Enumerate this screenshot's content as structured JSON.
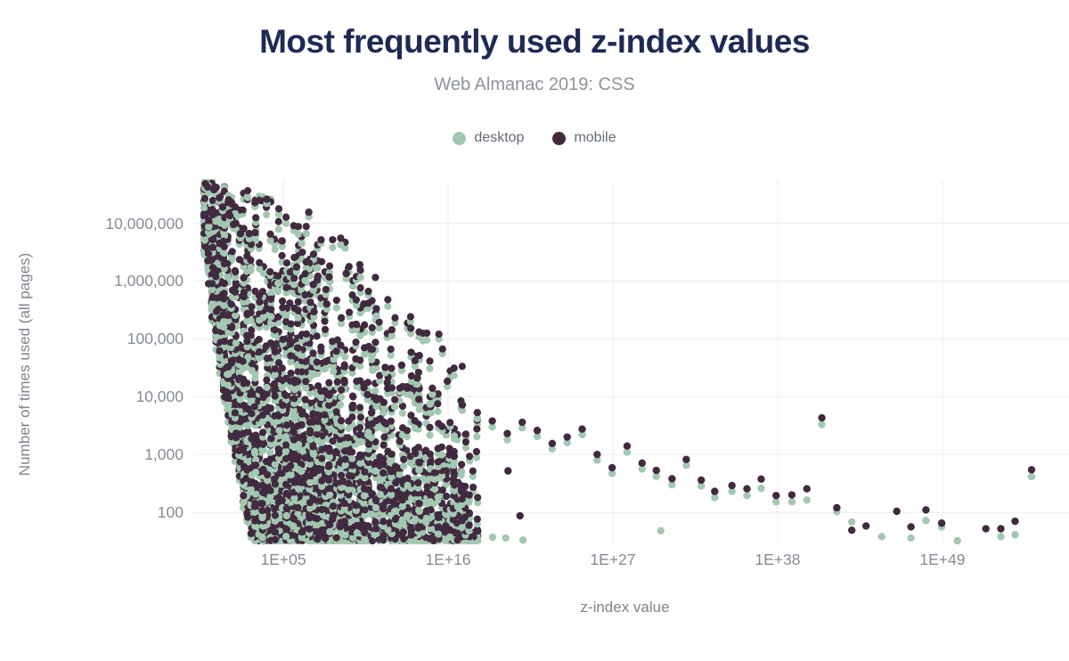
{
  "header": {
    "title": "Most frequently used z-index values",
    "subtitle": "Web Almanac 2019: CSS"
  },
  "palette": {
    "background": "#ffffff",
    "title_text": "#1e2a56",
    "subtitle_text": "#8e939a",
    "legend_text": "#636a73",
    "axis_title_text": "#7d848d",
    "tick_text": "#858c94",
    "gridline": "#ececec"
  },
  "chart_data": {
    "type": "scatter",
    "title": "Most frequently used z-index values",
    "subtitle": "Web Almanac 2019: CSS",
    "xlabel": "z-index value",
    "ylabel": "Number of times used (all pages)",
    "x_scale": "log",
    "y_scale": "log",
    "grid": true,
    "legend_position": "top",
    "x_domain_log10": [
      -0.95,
      57.45
    ],
    "y_domain": [
      27,
      54000000
    ],
    "x_ticks": [
      {
        "label": "1E+05",
        "log10": 5
      },
      {
        "label": "1E+16",
        "log10": 16
      },
      {
        "label": "1E+27",
        "log10": 27
      },
      {
        "label": "1E+38",
        "log10": 38
      },
      {
        "label": "1E+49",
        "log10": 49
      }
    ],
    "y_ticks": [
      {
        "label": "100",
        "value": 100
      },
      {
        "label": "1,000",
        "value": 1000
      },
      {
        "label": "10,000",
        "value": 10000
      },
      {
        "label": "100,000",
        "value": 100000
      },
      {
        "label": "1,000,000",
        "value": 1000000
      },
      {
        "label": "10,000,000",
        "value": 10000000
      }
    ],
    "series": [
      {
        "name": "desktop",
        "color": "#a3c8b2"
      },
      {
        "name": "mobile",
        "color": "#412a40"
      }
    ],
    "sparse_points_format": [
      "log10_zindex",
      "mobile_count",
      "desktop_count"
    ],
    "sparse_points": [
      [
        -0.2,
        48000000,
        54000000
      ],
      [
        -0.05,
        42000000,
        38000000
      ],
      [
        0.37,
        38000000,
        33000000
      ],
      [
        0.73,
        27500000,
        24000000
      ],
      [
        0.95,
        19000000,
        16500000
      ],
      [
        1.43,
        13500000,
        11500000
      ],
      [
        1.67,
        9500000,
        8200000
      ],
      [
        2.14,
        6600000,
        5600000
      ],
      [
        2.73,
        6600000,
        5400000
      ],
      [
        3.9,
        26000000,
        22000000
      ],
      [
        5.89,
        1750000,
        1450000
      ],
      [
        6.7,
        15500000,
        13000000
      ],
      [
        7.0,
        870000,
        700000
      ],
      [
        7.05,
        295000,
        240000
      ],
      [
        7.9,
        400000,
        330000
      ],
      [
        8.87,
        230000,
        185000
      ],
      [
        9.2,
        1350000,
        1100000
      ],
      [
        9.87,
        178000,
        145000
      ],
      [
        10.9,
        66000,
        54000
      ],
      [
        11.85,
        3400,
        2700
      ],
      [
        11.8,
        32000,
        26000
      ],
      [
        12.9,
        35000,
        28500
      ],
      [
        13.95,
        21000,
        16500
      ],
      [
        14.05,
        9000,
        7400
      ],
      [
        14.95,
        14000,
        11000
      ],
      [
        15.95,
        18500,
        15000
      ],
      [
        16.95,
        7200,
        5800
      ],
      [
        17.95,
        5300,
        4200
      ],
      [
        18.95,
        3800,
        3000
      ],
      [
        18.97,
        null,
        37
      ],
      [
        19.85,
        null,
        36
      ],
      [
        19.95,
        2300,
        1800
      ],
      [
        20.0,
        520,
        null
      ],
      [
        20.8,
        87,
        null
      ],
      [
        21.0,
        null,
        33
      ],
      [
        20.95,
        3600,
        2900
      ],
      [
        21.95,
        2600,
        2050
      ],
      [
        22.95,
        1550,
        1250
      ],
      [
        23.95,
        2000,
        1600
      ],
      [
        24.95,
        2750,
        2200
      ],
      [
        25.95,
        1000,
        800
      ],
      [
        26.95,
        590,
        470
      ],
      [
        27.95,
        1400,
        1100
      ],
      [
        28.95,
        710,
        560
      ],
      [
        29.9,
        530,
        420
      ],
      [
        30.2,
        null,
        48
      ],
      [
        30.95,
        380,
        300
      ],
      [
        31.9,
        820,
        650
      ],
      [
        32.9,
        360,
        285
      ],
      [
        33.8,
        230,
        180
      ],
      [
        34.95,
        290,
        230
      ],
      [
        35.95,
        255,
        195
      ],
      [
        36.9,
        375,
        260
      ],
      [
        37.9,
        195,
        152
      ],
      [
        38.95,
        200,
        152
      ],
      [
        39.95,
        255,
        163
      ],
      [
        40.95,
        4300,
        3300
      ],
      [
        41.95,
        120,
        103
      ],
      [
        42.95,
        49,
        68
      ],
      [
        43.9,
        58,
        null
      ],
      [
        44.95,
        null,
        38
      ],
      [
        45.95,
        104,
        null
      ],
      [
        46.9,
        56,
        36
      ],
      [
        47.9,
        110,
        72
      ],
      [
        48.95,
        65,
        56
      ],
      [
        50.0,
        null,
        32
      ],
      [
        51.9,
        52,
        null
      ],
      [
        52.9,
        52,
        38
      ],
      [
        53.85,
        70,
        41
      ],
      [
        54.95,
        545,
        415
      ]
    ],
    "dense_cloud": {
      "note": "Several thousand overlapping desktop/mobile point pairs form a solid wedge for z-index values between 1 and ~1e18 with counts from ~30 up to ~50,000,000; individual values are not resolvable in the image, so the cloud is reproduced procedurally from this sampled density model.",
      "model": {
        "seed": 1337,
        "n_target": 2450,
        "max_iter": 60000,
        "lx_min": -0.35,
        "lx_max": 18.0,
        "top_base": 7.72,
        "top_u0": -0.35,
        "top_lin": 0.0259,
        "top_quad": 0.00872,
        "bot_base": 7.7,
        "bot_u0": -0.47,
        "bot_k": 6.163,
        "bot_scale": 3.389,
        "bot_exp": 0.7,
        "bot_min": 1.49,
        "w_floor": 0.12,
        "w_pow": 2.2,
        "band_lc": 1.65,
        "band_boost": 1.5,
        "fx_start": 6.3,
        "fx_denom_a": 2.97,
        "fx_denom_b": 0.965,
        "col_step": 0.26,
        "col_jitter": 0.045,
        "p_desktop": 0.92,
        "pair_dlc_min": 0.062,
        "pair_dlc_max": 0.135
      }
    }
  }
}
